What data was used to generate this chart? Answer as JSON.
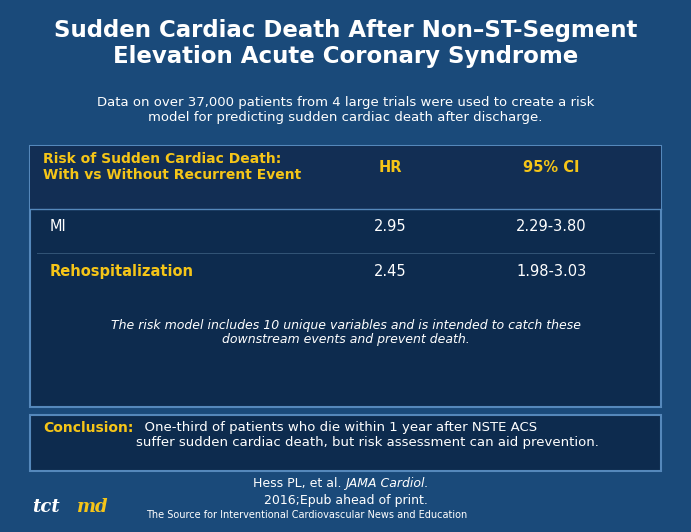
{
  "title": "Sudden Cardiac Death After Non–ST-Segment\nElevation Acute Coronary Syndrome",
  "subtitle": "Data on over 37,000 patients from 4 large trials were used to create a risk\nmodel for predicting sudden cardiac death after discharge.",
  "bg_color": "#1a4a7a",
  "bg_dark": "#0d2b4e",
  "table_header_label": "Risk of Sudden Cardiac Death:\nWith vs Without Recurrent Event",
  "table_col_hr": "HR",
  "table_col_ci": "95% CI",
  "table_rows": [
    {
      "label": "MI",
      "hr": "2.95",
      "ci": "2.29-3.80"
    },
    {
      "label": "Rehospitalization",
      "hr": "2.45",
      "ci": "1.98-3.03"
    }
  ],
  "table_note": "The risk model includes 10 unique variables and is intended to catch these\ndownstream events and prevent death.",
  "conclusion_label": "Conclusion:",
  "conclusion_text": "  One-third of patients who die within 1 year after NSTE ACS\nsuffer sudden cardiac death, but risk assessment can aid prevention.",
  "citation_normal": "Hess PL, et al. ",
  "citation_italic": "JAMA Cardiol.",
  "citation_line2": "2016;Epub ahead of print.",
  "footer_text": "The Source for Interventional Cardiovascular News and Education",
  "yellow": "#f5c518",
  "white": "#ffffff",
  "table_bg": "#0d2b4e",
  "table_hdr_bg": "#122e54",
  "conclusion_bg": "#0d2b4e",
  "border_color": "#5588bb",
  "sep_color": "#335577"
}
